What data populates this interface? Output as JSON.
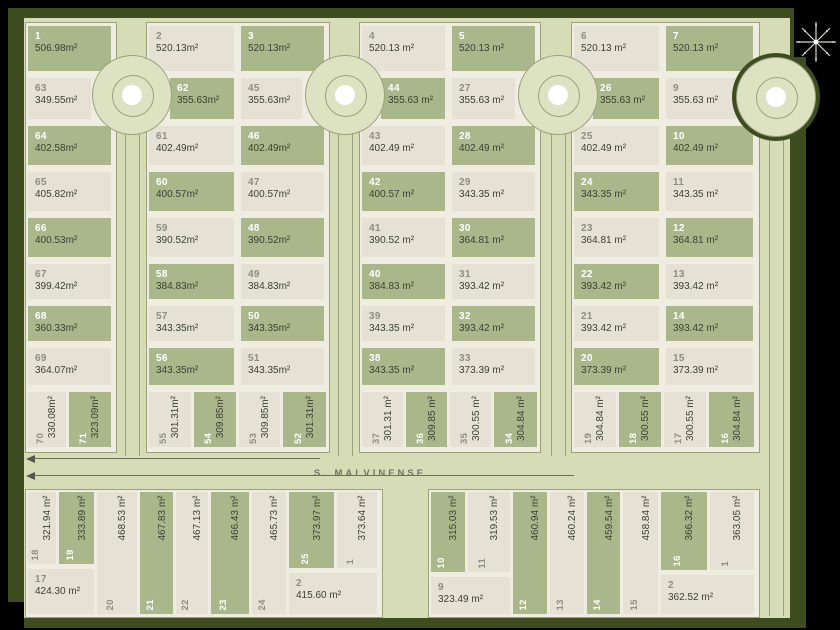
{
  "map_type": "subdivision-lot-plan",
  "street": {
    "name": "S. MALVINENSE"
  },
  "units": "m²",
  "colors": {
    "background": "#000000",
    "frame": "#3e4c20",
    "street": "#d6dcb6",
    "culdesac": "#dde2c2",
    "block_fill": "#efede2",
    "lot_shaded": "#a9b78b",
    "lot_plain": "#e5e1d5",
    "outline": "#9aa17b",
    "number_on_shaded": "#ffffff",
    "number_on_plain": "#8d8e81",
    "area_text": "#3c4033",
    "label_text": "#6f7560",
    "arrow": "#54584a",
    "north_star": "#d6d8cc"
  },
  "icons": {
    "north_star": "north-star-icon",
    "direction_arrows": "left-arrow"
  },
  "groups": {
    "b1": {
      "lots": [
        {
          "num": "1",
          "area": "506.98m²",
          "shaded": true
        },
        {
          "num": "63",
          "area": "349.55m²",
          "shaded": false
        },
        {
          "num": "64",
          "area": "402.58m²",
          "shaded": true
        },
        {
          "num": "65",
          "area": "405.82m²",
          "shaded": false
        },
        {
          "num": "66",
          "area": "400.53m²",
          "shaded": true
        },
        {
          "num": "67",
          "area": "399.42m²",
          "shaded": false
        },
        {
          "num": "68",
          "area": "360.33m²",
          "shaded": true
        },
        {
          "num": "69",
          "area": "364.07m²",
          "shaded": false
        }
      ]
    },
    "b1r": {
      "lots": [
        {
          "num": "70",
          "area": "330.08m²",
          "shaded": false
        },
        {
          "num": "71",
          "area": "323.09m²",
          "shaded": true
        }
      ]
    },
    "b2l": {
      "lots": [
        {
          "num": "2",
          "area": "520.13m²",
          "shaded": false
        },
        {
          "num": "62",
          "area": "355.63m²",
          "shaded": true
        },
        {
          "num": "61",
          "area": "402.49m²",
          "shaded": false
        },
        {
          "num": "60",
          "area": "400.57m²",
          "shaded": true
        },
        {
          "num": "59",
          "area": "390.52m²",
          "shaded": false
        },
        {
          "num": "58",
          "area": "384.83m²",
          "shaded": true
        },
        {
          "num": "57",
          "area": "343.35m²",
          "shaded": false
        },
        {
          "num": "56",
          "area": "343.35m²",
          "shaded": true
        }
      ]
    },
    "b2r": {
      "lots": [
        {
          "num": "3",
          "area": "520.13m²",
          "shaded": true
        },
        {
          "num": "45",
          "area": "355.63m²",
          "shaded": false
        },
        {
          "num": "46",
          "area": "402.49m²",
          "shaded": true
        },
        {
          "num": "47",
          "area": "400.57m²",
          "shaded": false
        },
        {
          "num": "48",
          "area": "390.52m²",
          "shaded": true
        },
        {
          "num": "49",
          "area": "384.83m²",
          "shaded": false
        },
        {
          "num": "50",
          "area": "343.35m²",
          "shaded": true
        },
        {
          "num": "51",
          "area": "343.35m²",
          "shaded": false
        }
      ]
    },
    "b2b": {
      "lots": [
        {
          "num": "55",
          "area": "301.31m²",
          "shaded": false
        },
        {
          "num": "54",
          "area": "309.85m²",
          "shaded": true
        },
        {
          "num": "53",
          "area": "309.85m²",
          "shaded": false
        },
        {
          "num": "52",
          "area": "301.31m²",
          "shaded": true
        }
      ]
    },
    "b3l": {
      "lots": [
        {
          "num": "4",
          "area": "520.13 m²",
          "shaded": false
        },
        {
          "num": "44",
          "area": "355.63 m²",
          "shaded": true
        },
        {
          "num": "43",
          "area": "402.49 m²",
          "shaded": false
        },
        {
          "num": "42",
          "area": "400.57 m²",
          "shaded": true
        },
        {
          "num": "41",
          "area": "390.52 m²",
          "shaded": false
        },
        {
          "num": "40",
          "area": "384.83 m²",
          "shaded": true
        },
        {
          "num": "39",
          "area": "343.35 m²",
          "shaded": false
        },
        {
          "num": "38",
          "area": "343.35 m²",
          "shaded": true
        }
      ]
    },
    "b3r": {
      "lots": [
        {
          "num": "5",
          "area": "520.13 m²",
          "shaded": true
        },
        {
          "num": "27",
          "area": "355.63 m²",
          "shaded": false
        },
        {
          "num": "28",
          "area": "402.49 m²",
          "shaded": true
        },
        {
          "num": "29",
          "area": "343.35 m²",
          "shaded": false
        },
        {
          "num": "30",
          "area": "364.81 m²",
          "shaded": true
        },
        {
          "num": "31",
          "area": "393.42 m²",
          "shaded": false
        },
        {
          "num": "32",
          "area": "393.42 m²",
          "shaded": true
        },
        {
          "num": "33",
          "area": "373.39 m²",
          "shaded": false
        }
      ]
    },
    "b3b": {
      "lots": [
        {
          "num": "37",
          "area": "301.31 m²",
          "shaded": false
        },
        {
          "num": "36",
          "area": "309.85 m²",
          "shaded": true
        },
        {
          "num": "35",
          "area": "300.55 m²",
          "shaded": false
        },
        {
          "num": "34",
          "area": "304.84 m²",
          "shaded": true
        }
      ]
    },
    "b4l": {
      "lots": [
        {
          "num": "6",
          "area": "520.13 m²",
          "shaded": false
        },
        {
          "num": "26",
          "area": "355.63 m²",
          "shaded": true
        },
        {
          "num": "25",
          "area": "402.49 m²",
          "shaded": false
        },
        {
          "num": "24",
          "area": "343.35 m²",
          "shaded": true
        },
        {
          "num": "23",
          "area": "364.81 m²",
          "shaded": false
        },
        {
          "num": "22",
          "area": "393.42 m²",
          "shaded": true
        },
        {
          "num": "21",
          "area": "393.42 m²",
          "shaded": false
        },
        {
          "num": "20",
          "area": "373.39 m²",
          "shaded": true
        }
      ]
    },
    "b4r": {
      "lots": [
        {
          "num": "7",
          "area": "520.13 m²",
          "shaded": true
        },
        {
          "num": "9",
          "area": "355.63 m²",
          "shaded": false
        },
        {
          "num": "10",
          "area": "402.49 m²",
          "shaded": true
        },
        {
          "num": "11",
          "area": "343.35 m²",
          "shaded": false
        },
        {
          "num": "12",
          "area": "364.81 m²",
          "shaded": true
        },
        {
          "num": "13",
          "area": "393.42 m²",
          "shaded": false
        },
        {
          "num": "14",
          "area": "393.42 m²",
          "shaded": true
        },
        {
          "num": "15",
          "area": "373.39 m²",
          "shaded": false
        }
      ]
    },
    "b4b": {
      "lots": [
        {
          "num": "19",
          "area": "304.84 m²",
          "shaded": false
        },
        {
          "num": "18",
          "area": "300.55 m²",
          "shaded": true
        },
        {
          "num": "17",
          "area": "300.55 m²",
          "shaded": false
        },
        {
          "num": "16",
          "area": "304.84 m²",
          "shaded": true
        }
      ]
    },
    "sl": {
      "lots": [
        {
          "num": "18",
          "area": "321.94 m²",
          "shaded": false
        },
        {
          "num": "19",
          "area": "333.89 m²",
          "shaded": true
        },
        {
          "num": "20",
          "area": "468.53 m²",
          "shaded": false
        },
        {
          "num": "21",
          "area": "467.83 m²",
          "shaded": true
        },
        {
          "num": "22",
          "area": "467.13 m²",
          "shaded": false
        },
        {
          "num": "23",
          "area": "466.43 m²",
          "shaded": true
        },
        {
          "num": "24",
          "area": "465.73 m²",
          "shaded": false
        },
        {
          "num": "25",
          "area": "373.97 m²",
          "shaded": true
        },
        {
          "num": "1",
          "area": "373.64 m²",
          "shaded": false
        }
      ]
    },
    "slh": {
      "lots": [
        {
          "num": "17",
          "area": "424.30 m²",
          "shaded": false
        },
        {
          "num": "2",
          "area": "415.60 m²",
          "shaded": false
        }
      ]
    },
    "sr": {
      "lots": [
        {
          "num": "10",
          "area": "315.03 m²",
          "shaded": true
        },
        {
          "num": "11",
          "area": "319.53 m²",
          "shaded": false
        },
        {
          "num": "12",
          "area": "460.94 m²",
          "shaded": true
        },
        {
          "num": "13",
          "area": "460.24 m²",
          "shaded": false
        },
        {
          "num": "14",
          "area": "459.54 m²",
          "shaded": true
        },
        {
          "num": "15",
          "area": "458.84 m²",
          "shaded": false
        },
        {
          "num": "16",
          "area": "366.32 m²",
          "shaded": true
        },
        {
          "num": "1",
          "area": "363.05 m²",
          "shaded": false
        }
      ]
    },
    "srh": {
      "lots": [
        {
          "num": "9",
          "area": "323.49 m²",
          "shaded": false
        },
        {
          "num": "2",
          "area": "362.52 m²",
          "shaded": false
        }
      ]
    }
  }
}
